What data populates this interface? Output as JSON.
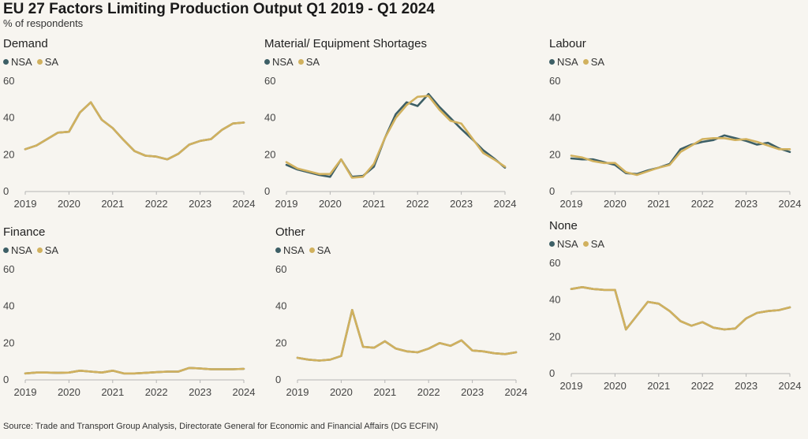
{
  "title": "EU 27 Factors Limiting Production Output Q1 2019 - Q1 2024",
  "subtitle": "% of respondents",
  "source": "Source: Trade and Transport Group Analysis, Directorate General for Economic and Financial Affairs (DG ECFIN)",
  "colors": {
    "NSA": "#3d5f66",
    "SA": "#d1b15e",
    "axis": "#b5b5b5"
  },
  "chart_data": [
    {
      "type": "line",
      "title": "Demand",
      "legend": [
        "NSA",
        "SA"
      ],
      "y_ticks": [
        "0",
        "20",
        "40",
        "60"
      ],
      "x_ticks": [
        "2019",
        "2020",
        "2021",
        "2022",
        "2023",
        "2024"
      ],
      "ylim": [
        0,
        60
      ],
      "x": [
        "Q1 2019",
        "Q2 2019",
        "Q3 2019",
        "Q4 2019",
        "Q1 2020",
        "Q2 2020",
        "Q3 2020",
        "Q4 2020",
        "Q1 2021",
        "Q2 2021",
        "Q3 2021",
        "Q4 2021",
        "Q1 2022",
        "Q2 2022",
        "Q3 2022",
        "Q4 2022",
        "Q1 2023",
        "Q2 2023",
        "Q3 2023",
        "Q4 2023",
        "Q1 2024"
      ],
      "series": [
        {
          "name": "NSA",
          "values": [
            23,
            25,
            28.5,
            32,
            32.5,
            43,
            48.5,
            39,
            34.5,
            28,
            22,
            19.5,
            19,
            17.5,
            20.5,
            25.5,
            27.5,
            28.5,
            33.5,
            37,
            37.5
          ]
        },
        {
          "name": "SA",
          "values": [
            23,
            25,
            28.5,
            32,
            32.5,
            43,
            48.5,
            39,
            34.5,
            28,
            22,
            19.5,
            19,
            17.5,
            20.5,
            25.5,
            27.5,
            28.5,
            33.5,
            37,
            37.5
          ]
        }
      ]
    },
    {
      "type": "line",
      "title": "Material/ Equipment Shortages",
      "legend": [
        "NSA",
        "SA"
      ],
      "y_ticks": [
        "0",
        "20",
        "40",
        "60"
      ],
      "x_ticks": [
        "2019",
        "2020",
        "2021",
        "2022",
        "2023",
        "2024"
      ],
      "ylim": [
        0,
        60
      ],
      "x": [
        "Q1 2019",
        "Q2 2019",
        "Q3 2019",
        "Q4 2019",
        "Q1 2020",
        "Q2 2020",
        "Q3 2020",
        "Q4 2020",
        "Q1 2021",
        "Q2 2021",
        "Q3 2021",
        "Q4 2021",
        "Q1 2022",
        "Q2 2022",
        "Q3 2022",
        "Q4 2022",
        "Q1 2023",
        "Q2 2023",
        "Q3 2023",
        "Q4 2023",
        "Q1 2024"
      ],
      "series": [
        {
          "name": "NSA",
          "values": [
            14.5,
            12,
            10.5,
            9,
            8,
            17.5,
            8,
            8.5,
            13.5,
            29,
            42,
            48.5,
            46.5,
            53,
            46,
            40,
            34,
            28.5,
            22.5,
            18,
            13
          ]
        },
        {
          "name": "SA",
          "values": [
            16,
            12.5,
            11,
            9.5,
            9.5,
            17.5,
            7.5,
            8,
            15,
            29,
            40,
            47,
            51.5,
            52,
            44.5,
            38.5,
            37,
            29,
            21,
            17.5,
            13.5
          ]
        }
      ]
    },
    {
      "type": "line",
      "title": "Labour",
      "legend": [
        "NSA",
        "SA"
      ],
      "y_ticks": [
        "0",
        "20",
        "40",
        "60"
      ],
      "x_ticks": [
        "2019",
        "2020",
        "2021",
        "2022",
        "2023",
        "2024"
      ],
      "ylim": [
        0,
        60
      ],
      "x": [
        "Q1 2019",
        "Q2 2019",
        "Q3 2019",
        "Q4 2019",
        "Q1 2020",
        "Q2 2020",
        "Q3 2020",
        "Q4 2020",
        "Q1 2021",
        "Q2 2021",
        "Q3 2021",
        "Q4 2021",
        "Q1 2022",
        "Q2 2022",
        "Q3 2022",
        "Q4 2022",
        "Q1 2023",
        "Q2 2023",
        "Q3 2023",
        "Q4 2023",
        "Q1 2024"
      ],
      "series": [
        {
          "name": "NSA",
          "values": [
            18,
            17.5,
            17.5,
            16,
            14.5,
            10,
            9.5,
            11.5,
            13,
            15,
            23,
            25.5,
            27,
            28,
            30.5,
            29,
            27.5,
            25.5,
            26.5,
            23.5,
            21.5
          ]
        },
        {
          "name": "SA",
          "values": [
            19.5,
            18.5,
            16.5,
            15.5,
            15.5,
            10.5,
            9,
            11,
            13,
            14.5,
            21.5,
            25,
            28.5,
            29,
            29,
            28,
            28.5,
            27,
            25,
            23,
            23
          ]
        }
      ]
    },
    {
      "type": "line",
      "title": "Finance",
      "legend": [
        "NSA",
        "SA"
      ],
      "y_ticks": [
        "0",
        "20",
        "40",
        "60"
      ],
      "x_ticks": [
        "2019",
        "2020",
        "2021",
        "2022",
        "2023",
        "2024"
      ],
      "ylim": [
        0,
        60
      ],
      "x": [
        "Q1 2019",
        "Q2 2019",
        "Q3 2019",
        "Q4 2019",
        "Q1 2020",
        "Q2 2020",
        "Q3 2020",
        "Q4 2020",
        "Q1 2021",
        "Q2 2021",
        "Q3 2021",
        "Q4 2021",
        "Q1 2022",
        "Q2 2022",
        "Q3 2022",
        "Q4 2022",
        "Q1 2023",
        "Q2 2023",
        "Q3 2023",
        "Q4 2023",
        "Q1 2024"
      ],
      "series": [
        {
          "name": "NSA",
          "values": [
            3.5,
            4,
            4,
            3.8,
            4,
            5,
            4.5,
            4,
            5,
            3.5,
            3.5,
            3.8,
            4.2,
            4.5,
            4.5,
            6.5,
            6.2,
            5.8,
            5.8,
            5.8,
            6
          ]
        },
        {
          "name": "SA",
          "values": [
            3.5,
            4,
            4,
            3.8,
            4,
            5,
            4.5,
            4,
            5,
            3.5,
            3.5,
            3.8,
            4.2,
            4.5,
            4.5,
            6.5,
            6.2,
            5.8,
            5.8,
            5.8,
            6
          ]
        }
      ]
    },
    {
      "type": "line",
      "title": "Other",
      "legend": [
        "NSA",
        "SA"
      ],
      "y_ticks": [
        "0",
        "20",
        "40",
        "60"
      ],
      "x_ticks": [
        "2019",
        "2020",
        "2021",
        "2022",
        "2023",
        "2024"
      ],
      "ylim": [
        0,
        60
      ],
      "x": [
        "Q1 2019",
        "Q2 2019",
        "Q3 2019",
        "Q4 2019",
        "Q1 2020",
        "Q2 2020",
        "Q3 2020",
        "Q4 2020",
        "Q1 2021",
        "Q2 2021",
        "Q3 2021",
        "Q4 2021",
        "Q1 2022",
        "Q2 2022",
        "Q3 2022",
        "Q4 2022",
        "Q1 2023",
        "Q2 2023",
        "Q3 2023",
        "Q4 2023",
        "Q1 2024"
      ],
      "series": [
        {
          "name": "NSA",
          "values": [
            12,
            11,
            10.5,
            11,
            13,
            38,
            18,
            17.5,
            21,
            17,
            15.5,
            15,
            17,
            20,
            18.5,
            21.5,
            16,
            15.5,
            14.5,
            14,
            15
          ]
        },
        {
          "name": "SA",
          "values": [
            12,
            11,
            10.5,
            11,
            13,
            38,
            18,
            17.5,
            21,
            17,
            15.5,
            15,
            17,
            20,
            18.5,
            21.5,
            16,
            15.5,
            14.5,
            14,
            15
          ]
        }
      ]
    },
    {
      "type": "line",
      "title": "None",
      "legend": [
        "NSA",
        "SA"
      ],
      "y_ticks": [
        "0",
        "20",
        "40",
        "60"
      ],
      "x_ticks": [
        "2019",
        "2020",
        "2021",
        "2022",
        "2023",
        "2024"
      ],
      "ylim": [
        0,
        60
      ],
      "x": [
        "Q1 2019",
        "Q2 2019",
        "Q3 2019",
        "Q4 2019",
        "Q1 2020",
        "Q2 2020",
        "Q3 2020",
        "Q4 2020",
        "Q1 2021",
        "Q2 2021",
        "Q3 2021",
        "Q4 2021",
        "Q1 2022",
        "Q2 2022",
        "Q3 2022",
        "Q4 2022",
        "Q1 2023",
        "Q2 2023",
        "Q3 2023",
        "Q4 2023",
        "Q1 2024"
      ],
      "series": [
        {
          "name": "NSA",
          "values": [
            46,
            47,
            46,
            45.5,
            45.5,
            24,
            31.5,
            39,
            38,
            34,
            28.5,
            26,
            28,
            25,
            24,
            24.5,
            30,
            33,
            34,
            34.5,
            36
          ]
        },
        {
          "name": "SA",
          "values": [
            46,
            47,
            46,
            45.5,
            45.5,
            24,
            31.5,
            39,
            38,
            34,
            28.5,
            26,
            28,
            25,
            24,
            24.5,
            30,
            33,
            34,
            34.5,
            36
          ]
        }
      ]
    }
  ]
}
